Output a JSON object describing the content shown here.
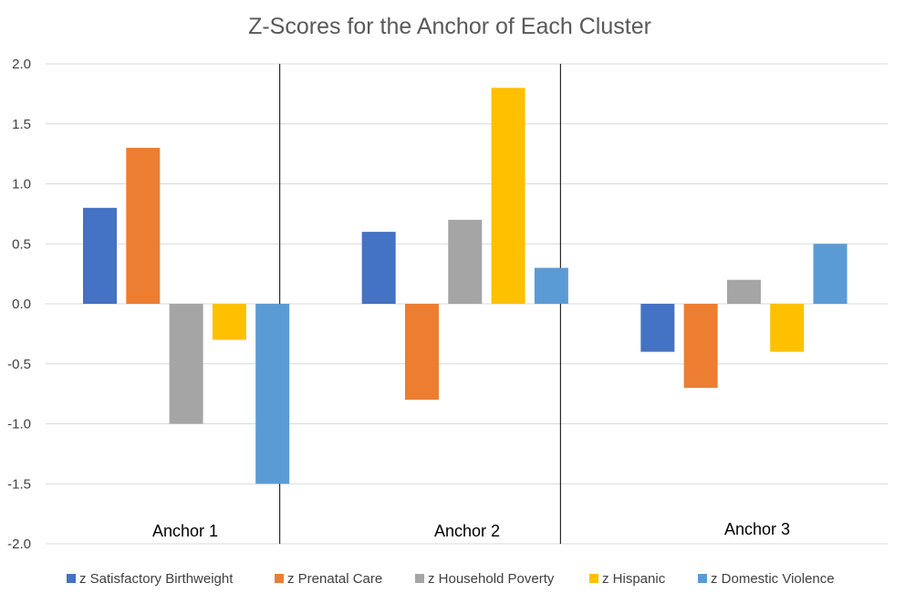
{
  "chart_data": {
    "type": "bar",
    "title": "Z-Scores for the Anchor of Each Cluster",
    "xlabel": "",
    "ylabel": "",
    "ylim": [
      -2.0,
      2.0
    ],
    "yticks": [
      "2.0",
      "1.5",
      "1.0",
      "0.5",
      "0.0",
      "-0.5",
      "-1.0",
      "-1.5",
      "-2.0"
    ],
    "ytick_values": [
      2.0,
      1.5,
      1.0,
      0.5,
      0.0,
      -0.5,
      -1.0,
      -1.5,
      -2.0
    ],
    "grid": true,
    "legend_position": "bottom",
    "categories": [
      "Anchor 1",
      "Anchor 2",
      "Anchor 3"
    ],
    "series": [
      {
        "name": "z Satisfactory Birthweight",
        "color": "#4472C4",
        "values": [
          0.8,
          0.6,
          -0.4
        ]
      },
      {
        "name": "z Prenatal Care",
        "color": "#ED7D31",
        "values": [
          1.3,
          -0.8,
          -0.7
        ]
      },
      {
        "name": "z Household Poverty",
        "color": "#A5A5A5",
        "values": [
          -1.0,
          0.7,
          0.2
        ]
      },
      {
        "name": "z Hispanic",
        "color": "#FFC000",
        "values": [
          -0.3,
          1.8,
          -0.4
        ]
      },
      {
        "name": "z Domestic Violence",
        "color": "#5B9BD5",
        "values": [
          -1.5,
          0.3,
          0.5
        ]
      }
    ]
  }
}
